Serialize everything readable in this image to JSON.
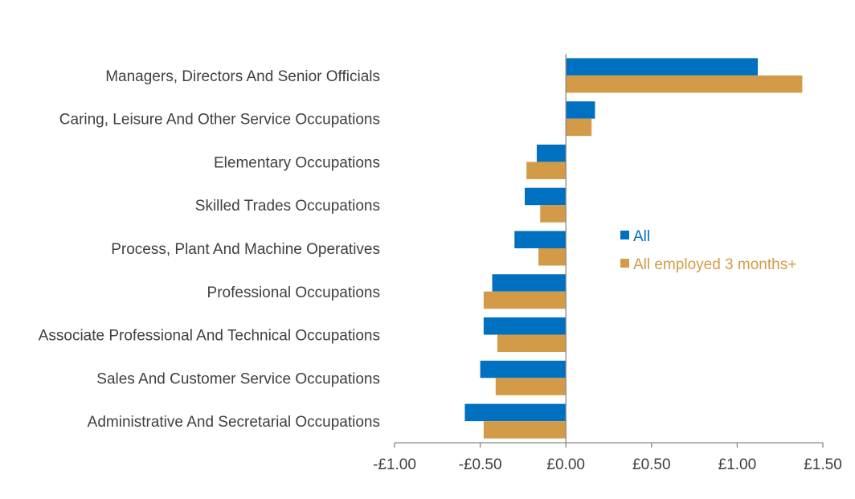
{
  "chart_data": {
    "type": "bar",
    "orientation": "horizontal",
    "title": "",
    "xlabel": "",
    "ylabel": "",
    "xlim": [
      -1.0,
      1.5
    ],
    "grid": false,
    "legend_position": "right",
    "categories": [
      "Managers, Directors And Senior Officials",
      "Caring, Leisure And Other Service Occupations",
      "Elementary Occupations ",
      "Skilled Trades Occupations",
      "Process, Plant And Machine Operatives",
      "Professional Occupations",
      "Associate Professional And Technical Occupations",
      "Sales And Customer Service Occupations",
      "Administrative And Secretarial Occupations"
    ],
    "series": [
      {
        "name": "All",
        "color": "#0070C0",
        "values": [
          1.12,
          0.17,
          -0.17,
          -0.24,
          -0.3,
          -0.43,
          -0.48,
          -0.5,
          -0.59
        ]
      },
      {
        "name": "All employed 3 months+",
        "color": "#D39B47",
        "values": [
          1.38,
          0.15,
          -0.23,
          -0.15,
          -0.16,
          -0.48,
          -0.4,
          -0.41,
          -0.48
        ]
      }
    ],
    "ticks": [
      {
        "value": -1.0,
        "label": "-£1.00"
      },
      {
        "value": -0.5,
        "label": "-£0.50"
      },
      {
        "value": 0.0,
        "label": "£0.00"
      },
      {
        "value": 0.5,
        "label": "£0.50"
      },
      {
        "value": 1.0,
        "label": "£1.00"
      },
      {
        "value": 1.5,
        "label": "£1.50"
      }
    ]
  }
}
